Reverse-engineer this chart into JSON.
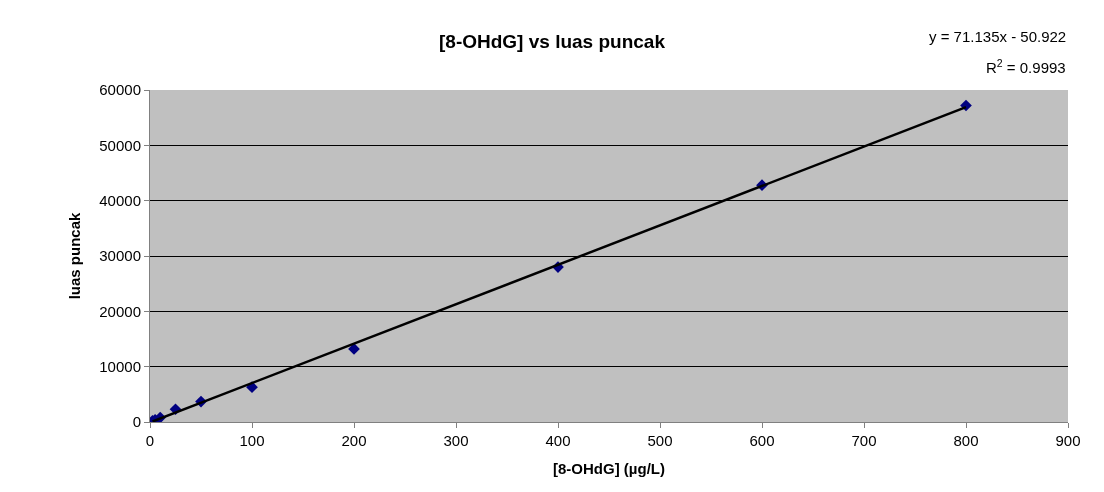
{
  "chart_data": {
    "type": "scatter",
    "title": "[8-OHdG] vs luas puncak",
    "xlabel": "[8-OHdG] (µg/L)",
    "ylabel": "luas puncak",
    "annotations": [
      "y = 71.135x - 50.922",
      "R$^{2}$ = 0.9993"
    ],
    "series": [
      {
        "color": "#000080",
        "marker": "diamond",
        "x": [
          2.5,
          5,
          10,
          25,
          50,
          100,
          200,
          400,
          600,
          800
        ],
        "values": [
          200,
          400,
          800,
          2300,
          3700,
          6300,
          13200,
          28000,
          42800,
          57200
        ]
      },
      {
        "type": "line",
        "color": "#000000",
        "marker": "none",
        "line_style": "solid",
        "x": [
          2.5,
          800
        ],
        "values": [
          100,
          56900
        ]
      }
    ],
    "xlim": [
      0,
      900
    ],
    "xticks": [
      0,
      100,
      200,
      300,
      400,
      500,
      600,
      700,
      800,
      900
    ],
    "ylim": [
      0,
      60000
    ],
    "yticks": [
      0,
      10000,
      20000,
      30000,
      40000,
      50000,
      60000
    ],
    "grid": "y",
    "legend": false
  }
}
